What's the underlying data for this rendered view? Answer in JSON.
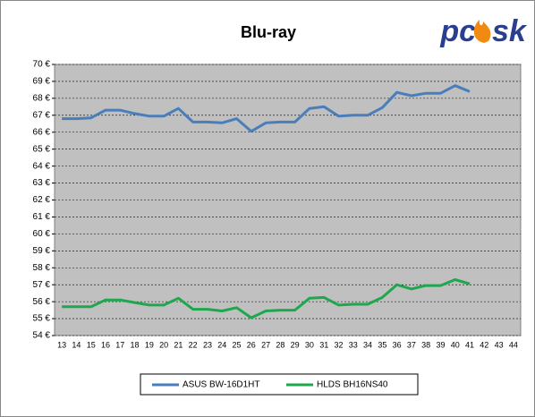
{
  "chart_data": {
    "type": "line",
    "title": "Blu-ray",
    "logo": [
      "pc",
      "sk"
    ],
    "categories": [
      "13",
      "14",
      "15",
      "16",
      "17",
      "18",
      "19",
      "20",
      "21",
      "22",
      "23",
      "24",
      "25",
      "26",
      "27",
      "28",
      "29",
      "30",
      "31",
      "32",
      "33",
      "34",
      "35",
      "36",
      "37",
      "38",
      "39",
      "40",
      "41",
      "42",
      "43",
      "44"
    ],
    "series": [
      {
        "name": "ASUS BW-16D1HT",
        "color": "#4a7ebb",
        "values": [
          66.8,
          66.8,
          66.85,
          67.3,
          67.3,
          67.1,
          66.95,
          66.95,
          67.4,
          66.6,
          66.6,
          66.55,
          66.8,
          66.05,
          66.55,
          66.6,
          66.6,
          67.4,
          67.5,
          66.95,
          67.0,
          67.0,
          67.45,
          68.35,
          68.15,
          68.3,
          68.3,
          68.75,
          68.4,
          null,
          null,
          null
        ]
      },
      {
        "name": "HLDS BH16NS40",
        "color": "#1ea84e",
        "values": [
          55.7,
          55.7,
          55.7,
          56.1,
          56.1,
          55.95,
          55.8,
          55.8,
          56.2,
          55.55,
          55.55,
          55.45,
          55.65,
          55.05,
          55.45,
          55.5,
          55.5,
          56.2,
          56.25,
          55.8,
          55.85,
          55.85,
          56.25,
          57.0,
          56.75,
          56.95,
          56.95,
          57.3,
          57.05,
          null,
          null,
          null
        ]
      }
    ],
    "ylim": [
      54,
      70
    ],
    "yticks": [
      {
        "value": 54,
        "label": "54 €"
      },
      {
        "value": 55,
        "label": "55 €"
      },
      {
        "value": 56,
        "label": "56 €"
      },
      {
        "value": 57,
        "label": "57 €"
      },
      {
        "value": 58,
        "label": "58 €"
      },
      {
        "value": 59,
        "label": "59 €"
      },
      {
        "value": 60,
        "label": "60 €"
      },
      {
        "value": 61,
        "label": "61 €"
      },
      {
        "value": 62,
        "label": "62 €"
      },
      {
        "value": 63,
        "label": "63 €"
      },
      {
        "value": 64,
        "label": "64 €"
      },
      {
        "value": 65,
        "label": "65 €"
      },
      {
        "value": 66,
        "label": "66 €"
      },
      {
        "value": 67,
        "label": "67 €"
      },
      {
        "value": 68,
        "label": "68 €"
      },
      {
        "value": 69,
        "label": "69 €"
      },
      {
        "value": 70,
        "label": "70 €"
      }
    ],
    "grid": true,
    "legend": "bottom"
  }
}
